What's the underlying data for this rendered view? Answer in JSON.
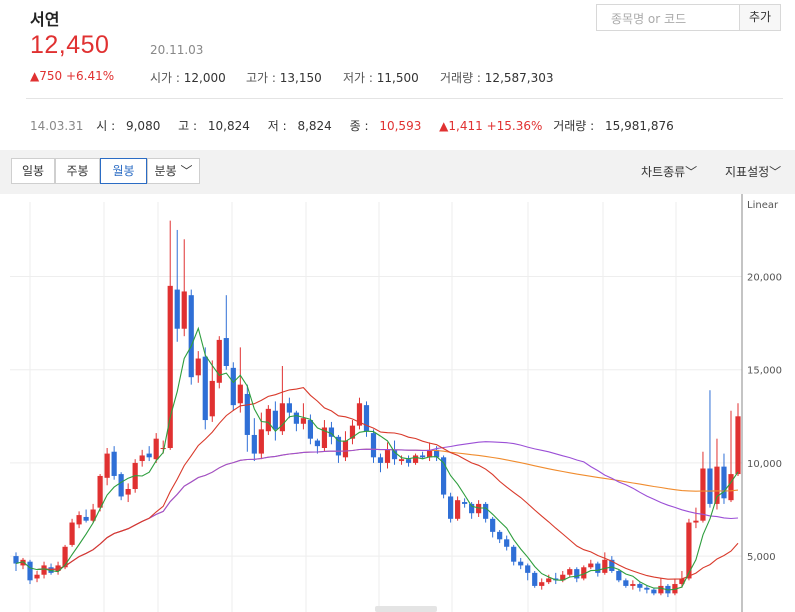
{
  "header": {
    "name": "서연",
    "search_placeholder": "종목명 or 코드",
    "add_label": "추가",
    "price": "12,450",
    "date": "20.11.03",
    "change": "▲750 +6.41%",
    "quote": [
      {
        "k": "시가 : ",
        "v": "12,000"
      },
      {
        "k": "고가 : ",
        "v": "13,150"
      },
      {
        "k": "저가 : ",
        "v": "11,500"
      },
      {
        "k": "거래량 : ",
        "v": "12,587,303"
      }
    ]
  },
  "history": {
    "date": "14.03.31",
    "open_k": "시 : ",
    "open_v": "9,080",
    "high_k": "고 : ",
    "high_v": "10,824",
    "low_k": "저 : ",
    "low_v": "8,824",
    "close_k": "종 : ",
    "close_v": "10,593",
    "change": "▲1,411 +15.36%",
    "volume_k": "거래량 : ",
    "volume_v": "15,981,876"
  },
  "tabs": [
    "일봉",
    "주봉",
    "월봉",
    "분봉"
  ],
  "active_tab": "월봉",
  "menus": {
    "chart_type": "차트종류",
    "indicator": "지표설정"
  },
  "colors": {
    "up": "#e03131",
    "down": "#2f6fd6",
    "ma5": "#2e9e3e",
    "ma20": "#d93a2b",
    "ma60": "#9b4fd6",
    "ma120": "#f08c2e"
  },
  "chart_data": {
    "type": "candlestick",
    "scale": "Linear",
    "ylim": [
      2000,
      24000
    ],
    "yticks": [
      "20,000",
      "15,000",
      "10,000",
      "5,000"
    ],
    "ytick_values": [
      20000,
      15000,
      10000,
      5000
    ],
    "candles": [
      [
        5000,
        4600,
        4200,
        5200
      ],
      [
        4500,
        4800,
        4300,
        4900
      ],
      [
        4700,
        3700,
        3500,
        4800
      ],
      [
        3800,
        4000,
        3600,
        4200
      ],
      [
        4000,
        4500,
        3800,
        4700
      ],
      [
        4400,
        4100,
        4000,
        4600
      ],
      [
        4200,
        4500,
        4000,
        4700
      ],
      [
        4400,
        5500,
        4300,
        5600
      ],
      [
        5600,
        6800,
        5500,
        7000
      ],
      [
        6700,
        7200,
        6500,
        7400
      ],
      [
        7100,
        6900,
        6800,
        7500
      ],
      [
        6900,
        7500,
        6800,
        7800
      ],
      [
        7600,
        9300,
        7400,
        9400
      ],
      [
        9200,
        10500,
        8800,
        10800
      ],
      [
        10600,
        9300,
        9100,
        10900
      ],
      [
        9400,
        8200,
        8000,
        9500
      ],
      [
        8300,
        8600,
        7900,
        8900
      ],
      [
        8600,
        10000,
        8400,
        10200
      ],
      [
        10100,
        10400,
        9800,
        10700
      ],
      [
        10500,
        10300,
        10100,
        10900
      ],
      [
        10200,
        11300,
        10000,
        11600
      ],
      [
        10800,
        10800,
        10500,
        11200
      ],
      [
        10800,
        19500,
        10700,
        23000
      ],
      [
        19300,
        17200,
        16500,
        22500
      ],
      [
        17200,
        19200,
        16800,
        22000
      ],
      [
        19000,
        14600,
        14200,
        19300
      ],
      [
        14700,
        15600,
        14300,
        16000
      ],
      [
        15700,
        12300,
        11800,
        16200
      ],
      [
        12500,
        14400,
        12200,
        15500
      ],
      [
        14300,
        16600,
        14000,
        16800
      ],
      [
        16700,
        15200,
        15000,
        19000
      ],
      [
        15100,
        13100,
        12800,
        15400
      ],
      [
        13200,
        14200,
        12700,
        16200
      ],
      [
        13700,
        11500,
        10600,
        14200
      ],
      [
        11500,
        10500,
        10100,
        12400
      ],
      [
        10500,
        11800,
        10200,
        12700
      ],
      [
        11700,
        12900,
        11500,
        13100
      ],
      [
        12800,
        11800,
        11200,
        13300
      ],
      [
        11700,
        13200,
        11500,
        15200
      ],
      [
        13200,
        12700,
        12400,
        13500
      ],
      [
        12700,
        12100,
        11700,
        12800
      ],
      [
        12100,
        12400,
        11800,
        13200
      ],
      [
        12300,
        11300,
        11000,
        12600
      ],
      [
        11200,
        10900,
        10500,
        11300
      ],
      [
        10800,
        11900,
        10600,
        12300
      ],
      [
        11900,
        11400,
        11000,
        12200
      ],
      [
        11400,
        10400,
        10000,
        11500
      ],
      [
        10300,
        11200,
        10100,
        11700
      ],
      [
        11300,
        12000,
        11000,
        12300
      ],
      [
        12000,
        13200,
        11800,
        13500
      ],
      [
        13100,
        11700,
        11400,
        13300
      ],
      [
        11600,
        10300,
        10000,
        11800
      ],
      [
        10300,
        10000,
        9500,
        10500
      ],
      [
        10000,
        10700,
        9700,
        11100
      ],
      [
        10700,
        10200,
        9900,
        11200
      ],
      [
        10100,
        10200,
        9900,
        10400
      ],
      [
        10200,
        10000,
        9800,
        10400
      ],
      [
        10000,
        10400,
        9900,
        10500
      ],
      [
        10400,
        10300,
        10200,
        10600
      ],
      [
        10300,
        10700,
        10100,
        11100
      ],
      [
        10700,
        10300,
        10100,
        10900
      ],
      [
        10300,
        8300,
        8100,
        10400
      ],
      [
        8200,
        7000,
        6800,
        8400
      ],
      [
        7000,
        8000,
        6900,
        8200
      ],
      [
        7900,
        7800,
        7600,
        8100
      ],
      [
        7800,
        7300,
        7000,
        7900
      ],
      [
        7300,
        7800,
        7100,
        8000
      ],
      [
        7800,
        7000,
        6800,
        7900
      ],
      [
        7000,
        6300,
        6000,
        7100
      ],
      [
        6300,
        5900,
        5700,
        6400
      ],
      [
        5900,
        5500,
        5300,
        6100
      ],
      [
        5500,
        4700,
        4500,
        5600
      ],
      [
        4700,
        4500,
        4300,
        4900
      ],
      [
        4500,
        4100,
        3700,
        4600
      ],
      [
        4100,
        3400,
        3300,
        4200
      ],
      [
        3400,
        3600,
        3200,
        3800
      ],
      [
        3600,
        3800,
        3500,
        4000
      ],
      [
        3800,
        3700,
        3500,
        4100
      ],
      [
        3700,
        4000,
        3600,
        4200
      ],
      [
        4000,
        4300,
        3900,
        4400
      ],
      [
        4300,
        3800,
        3600,
        4400
      ],
      [
        3800,
        4400,
        3700,
        4500
      ],
      [
        4400,
        4600,
        4300,
        4800
      ],
      [
        4600,
        4100,
        3900,
        4700
      ],
      [
        4100,
        4800,
        4000,
        5200
      ],
      [
        4800,
        4200,
        4100,
        5000
      ],
      [
        4200,
        3700,
        3600,
        4300
      ],
      [
        3700,
        3400,
        3300,
        3800
      ],
      [
        3400,
        3500,
        3200,
        3700
      ],
      [
        3500,
        3300,
        3100,
        3600
      ],
      [
        3300,
        3200,
        3000,
        3400
      ],
      [
        3200,
        3000,
        2900,
        3300
      ],
      [
        3000,
        3400,
        2900,
        3800
      ],
      [
        3400,
        3000,
        2800,
        3500
      ],
      [
        3000,
        3500,
        2900,
        3800
      ],
      [
        3500,
        3800,
        3300,
        4200
      ],
      [
        3800,
        6800,
        3700,
        7000
      ],
      [
        6800,
        6900,
        6500,
        7600
      ],
      [
        6900,
        9700,
        6800,
        10600
      ],
      [
        9700,
        7800,
        7600,
        13900
      ],
      [
        7800,
        9800,
        7500,
        11300
      ],
      [
        9800,
        8100,
        7800,
        10500
      ],
      [
        8000,
        9400,
        7900,
        12800
      ],
      [
        9400,
        12500,
        9300,
        13200
      ]
    ]
  }
}
